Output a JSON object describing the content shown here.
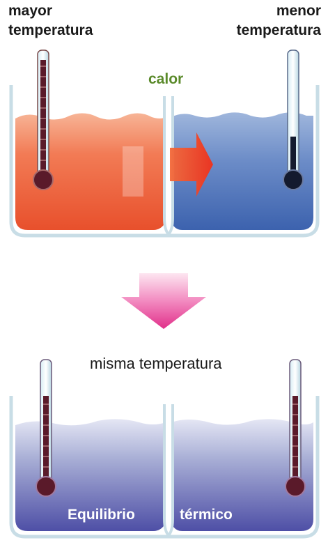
{
  "labels": {
    "hot_side": "mayor\ntemperatura",
    "cold_side": "menor\ntemperatura",
    "heat": "calor",
    "same_temp": "misma temperatura",
    "equilibrium_1": "Equilibrio",
    "equilibrium_2": "térmico"
  },
  "colors": {
    "hot_water": "#f06a4a",
    "cold_water": "#5c7fc0",
    "equilibrium_water": "#6e72b8",
    "heat_arrow": "#f24a2a",
    "transition_arrow": "#e03a8c",
    "container_outline": "#c8dde6",
    "thermometer_liquid": "#5a1a2a",
    "heat_label": "#5a8a2a"
  },
  "thermometers": {
    "hot_fill_level": 0.85,
    "cold_fill_level": 0.35,
    "equilibrium_fill_level": 0.6
  }
}
